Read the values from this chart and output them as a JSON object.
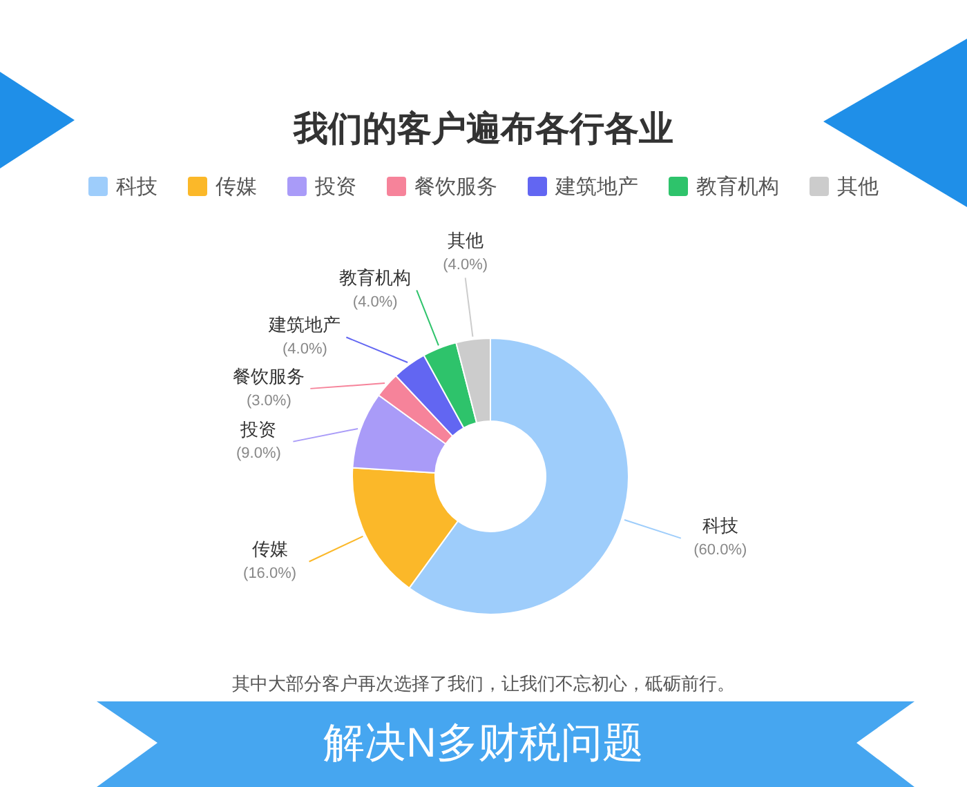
{
  "chart_data": {
    "type": "donut",
    "title": "我们的客户遍布各行各业",
    "categories": [
      "科技",
      "传媒",
      "投资",
      "餐饮服务",
      "建筑地产",
      "教育机构",
      "其他"
    ],
    "values": [
      60,
      16,
      9,
      3,
      4,
      4,
      4
    ],
    "colors": [
      "#9ecdfb",
      "#fbb829",
      "#a99bf8",
      "#f6839a",
      "#6266f2",
      "#2ec36b",
      "#cccccc"
    ],
    "value_labels": [
      "(60.0%)",
      "(16.0%)",
      "(9.0%)",
      "(3.0%)",
      "(4.0%)",
      "(4.0%)",
      "(4.0%)"
    ],
    "legend": "top",
    "annotations": [
      "其中大部分客户再次选择了我们，让我们不忘初心，砥砺前行。",
      "解决N多财税问题"
    ]
  }
}
